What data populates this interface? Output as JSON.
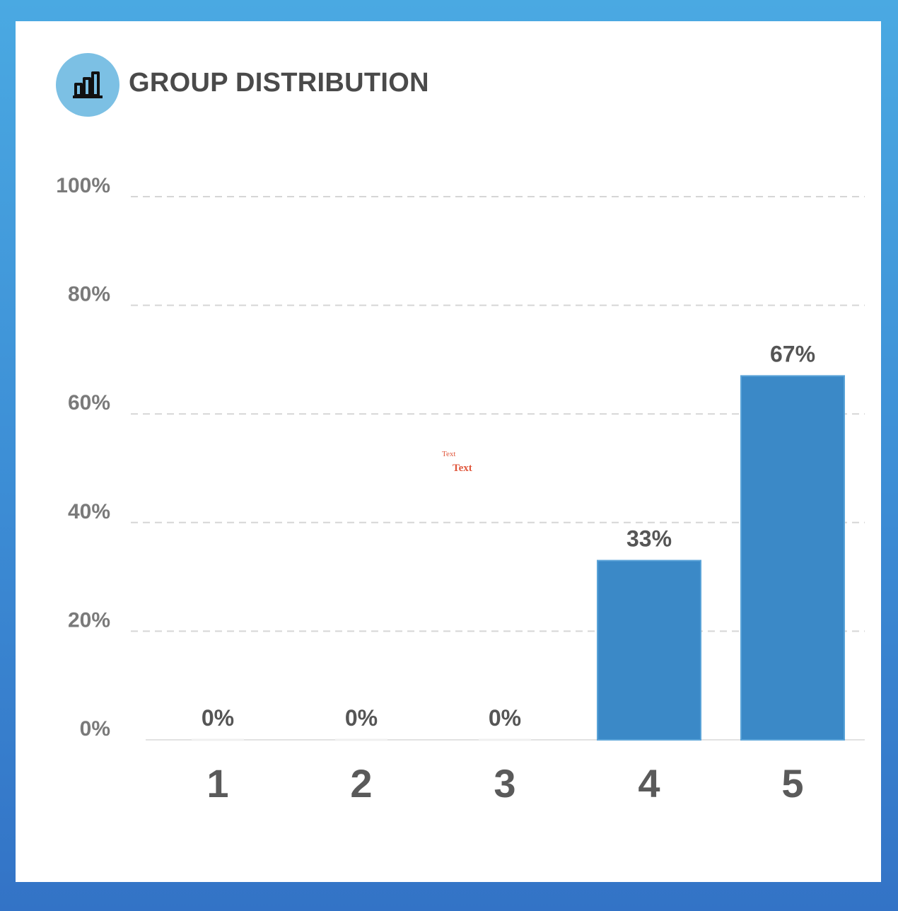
{
  "header": {
    "title": "GROUP DISTRIBUTION",
    "icon": "bar-chart-icon"
  },
  "annotations": {
    "note_small": "Text",
    "note_large": "Text"
  },
  "colors": {
    "bar": "#3b89c7",
    "icon_bg": "#7cc0e4",
    "grid": "#d6d6d6",
    "label": "#555555"
  },
  "chart_data": {
    "type": "bar",
    "title": "GROUP DISTRIBUTION",
    "xlabel": "",
    "ylabel": "",
    "categories": [
      "1",
      "2",
      "3",
      "4",
      "5"
    ],
    "values": [
      0,
      0,
      0,
      33,
      67
    ],
    "value_labels": [
      "0%",
      "0%",
      "0%",
      "33%",
      "67%"
    ],
    "yticks": [
      "0%",
      "20%",
      "40%",
      "60%",
      "80%",
      "100%"
    ],
    "ylim": [
      0,
      100
    ],
    "grid": true,
    "legend": "none"
  }
}
